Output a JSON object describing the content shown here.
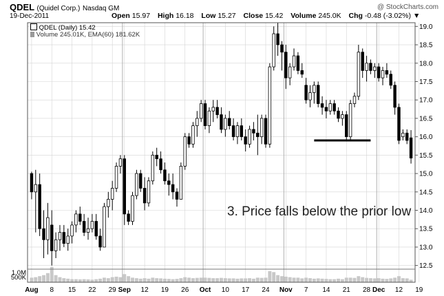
{
  "header": {
    "symbol": "QDEL",
    "company": "(Quidel Corp.)",
    "exchange": "Nasdaq GM",
    "date": "19-Dec-2011",
    "open_label": "Open",
    "open": "15.97",
    "high_label": "High",
    "high": "16.18",
    "low_label": "Low",
    "low": "15.27",
    "close_label": "Close",
    "close": "15.42",
    "volume_label": "Volume",
    "volume": "245.0K",
    "chg_label": "Chg",
    "chg": "-0.48 (-3.02%)",
    "chg_arrow": "▼",
    "watermark": "@ StockCharts.com"
  },
  "legend": {
    "price": "QDEL (Daily) 15.42",
    "volume": "Volume 245.01K, EMA(60) 181.62K"
  },
  "annotation": "3. Price falls below the prior low",
  "chart_data": {
    "type": "candlestick",
    "y_range": [
      12.4,
      19.1
    ],
    "y_ticks": [
      12.5,
      13.0,
      13.5,
      14.0,
      14.5,
      15.0,
      15.5,
      16.0,
      16.5,
      17.0,
      17.5,
      18.0,
      18.5,
      19.0
    ],
    "x_ticks": [
      "Aug",
      "8",
      "15",
      "22",
      "29",
      "Sep",
      "12",
      "19",
      "26",
      "Oct",
      "10",
      "17",
      "24",
      "Nov",
      "7",
      "14",
      "21",
      "28",
      "Dec",
      "12",
      "19"
    ],
    "x_tick_index": [
      0,
      5,
      10,
      15,
      20,
      23,
      28,
      33,
      38,
      43,
      48,
      53,
      58,
      63,
      68,
      73,
      78,
      83,
      86,
      91,
      96
    ],
    "month_start_index": [
      0,
      23,
      43,
      63,
      86
    ],
    "volume_ticks": [
      {
        "label": "1.0M",
        "value": 1000
      },
      {
        "label": "500K",
        "value": 500
      }
    ],
    "volume_range_k": [
      0,
      1700
    ],
    "colors": {
      "up": "#ffffff",
      "down": "#000000",
      "volume": "#c8c8c8",
      "grid": "#d4d4d4",
      "month_line": "#b0b0b0"
    },
    "prior_low_line": {
      "value": 15.9,
      "from_index": 70,
      "to_index": 84
    },
    "candles": [
      {
        "o": 15.0,
        "h": 15.05,
        "l": 14.3,
        "c": 14.5,
        "v": 450
      },
      {
        "o": 14.5,
        "h": 15.1,
        "l": 13.4,
        "c": 14.7,
        "v": 500
      },
      {
        "o": 14.7,
        "h": 15.0,
        "l": 13.3,
        "c": 13.5,
        "v": 600
      },
      {
        "o": 13.5,
        "h": 14.0,
        "l": 12.7,
        "c": 13.2,
        "v": 700
      },
      {
        "o": 13.2,
        "h": 14.2,
        "l": 12.8,
        "c": 13.8,
        "v": 900
      },
      {
        "o": 13.6,
        "h": 14.0,
        "l": 12.5,
        "c": 12.9,
        "v": 1500
      },
      {
        "o": 12.9,
        "h": 13.4,
        "l": 12.7,
        "c": 13.2,
        "v": 700
      },
      {
        "o": 13.2,
        "h": 13.6,
        "l": 12.9,
        "c": 13.4,
        "v": 500
      },
      {
        "o": 13.4,
        "h": 13.6,
        "l": 13.0,
        "c": 13.1,
        "v": 400
      },
      {
        "o": 13.1,
        "h": 13.5,
        "l": 12.9,
        "c": 13.3,
        "v": 350
      },
      {
        "o": 13.3,
        "h": 13.7,
        "l": 13.1,
        "c": 13.6,
        "v": 300
      },
      {
        "o": 13.6,
        "h": 14.0,
        "l": 13.4,
        "c": 13.9,
        "v": 300
      },
      {
        "o": 13.9,
        "h": 14.1,
        "l": 13.6,
        "c": 13.7,
        "v": 280
      },
      {
        "o": 13.7,
        "h": 13.9,
        "l": 13.3,
        "c": 13.4,
        "v": 300
      },
      {
        "o": 13.4,
        "h": 13.8,
        "l": 13.2,
        "c": 13.5,
        "v": 280
      },
      {
        "o": 13.5,
        "h": 13.9,
        "l": 13.4,
        "c": 13.7,
        "v": 250
      },
      {
        "o": 13.7,
        "h": 13.9,
        "l": 13.2,
        "c": 13.3,
        "v": 300
      },
      {
        "o": 13.3,
        "h": 13.5,
        "l": 12.9,
        "c": 13.0,
        "v": 350
      },
      {
        "o": 13.0,
        "h": 14.2,
        "l": 13.0,
        "c": 14.1,
        "v": 450
      },
      {
        "o": 14.1,
        "h": 14.5,
        "l": 13.8,
        "c": 14.3,
        "v": 400
      },
      {
        "o": 14.3,
        "h": 14.8,
        "l": 14.0,
        "c": 14.6,
        "v": 500
      },
      {
        "o": 14.6,
        "h": 15.3,
        "l": 14.5,
        "c": 15.2,
        "v": 550
      },
      {
        "o": 15.2,
        "h": 15.5,
        "l": 15.0,
        "c": 15.4,
        "v": 500
      },
      {
        "o": 15.4,
        "h": 15.5,
        "l": 13.6,
        "c": 13.9,
        "v": 800
      },
      {
        "o": 13.9,
        "h": 14.0,
        "l": 13.6,
        "c": 13.7,
        "v": 600
      },
      {
        "o": 13.7,
        "h": 14.5,
        "l": 13.6,
        "c": 14.4,
        "v": 450
      },
      {
        "o": 14.4,
        "h": 15.1,
        "l": 14.3,
        "c": 15.0,
        "v": 400
      },
      {
        "o": 15.0,
        "h": 15.1,
        "l": 14.5,
        "c": 14.6,
        "v": 350
      },
      {
        "o": 14.6,
        "h": 14.9,
        "l": 14.0,
        "c": 14.2,
        "v": 400
      },
      {
        "o": 14.2,
        "h": 14.9,
        "l": 14.1,
        "c": 14.8,
        "v": 350
      },
      {
        "o": 14.8,
        "h": 15.6,
        "l": 14.7,
        "c": 15.5,
        "v": 450
      },
      {
        "o": 15.5,
        "h": 15.7,
        "l": 15.2,
        "c": 15.4,
        "v": 400
      },
      {
        "o": 15.4,
        "h": 15.6,
        "l": 15.0,
        "c": 15.1,
        "v": 380
      },
      {
        "o": 15.1,
        "h": 15.3,
        "l": 14.7,
        "c": 14.8,
        "v": 350
      },
      {
        "o": 14.8,
        "h": 15.0,
        "l": 14.4,
        "c": 14.7,
        "v": 330
      },
      {
        "o": 14.7,
        "h": 15.0,
        "l": 14.3,
        "c": 14.5,
        "v": 300
      },
      {
        "o": 14.5,
        "h": 14.6,
        "l": 14.1,
        "c": 14.3,
        "v": 330
      },
      {
        "o": 14.3,
        "h": 15.3,
        "l": 14.3,
        "c": 15.2,
        "v": 400
      },
      {
        "o": 15.2,
        "h": 16.1,
        "l": 15.1,
        "c": 16.0,
        "v": 500
      },
      {
        "o": 16.0,
        "h": 16.1,
        "l": 15.7,
        "c": 15.8,
        "v": 450
      },
      {
        "o": 15.8,
        "h": 16.4,
        "l": 15.7,
        "c": 16.3,
        "v": 400
      },
      {
        "o": 16.3,
        "h": 16.7,
        "l": 16.0,
        "c": 16.5,
        "v": 430
      },
      {
        "o": 16.5,
        "h": 17.0,
        "l": 16.4,
        "c": 16.9,
        "v": 450
      },
      {
        "o": 16.9,
        "h": 17.0,
        "l": 16.2,
        "c": 16.3,
        "v": 450
      },
      {
        "o": 16.3,
        "h": 16.8,
        "l": 16.1,
        "c": 16.7,
        "v": 430
      },
      {
        "o": 16.7,
        "h": 17.0,
        "l": 16.4,
        "c": 16.8,
        "v": 400
      },
      {
        "o": 16.8,
        "h": 17.0,
        "l": 16.5,
        "c": 16.6,
        "v": 400
      },
      {
        "o": 16.6,
        "h": 16.8,
        "l": 16.1,
        "c": 16.2,
        "v": 430
      },
      {
        "o": 16.2,
        "h": 16.6,
        "l": 16.0,
        "c": 16.5,
        "v": 400
      },
      {
        "o": 16.5,
        "h": 16.7,
        "l": 16.2,
        "c": 16.3,
        "v": 380
      },
      {
        "o": 16.3,
        "h": 16.5,
        "l": 15.9,
        "c": 16.0,
        "v": 380
      },
      {
        "o": 16.0,
        "h": 16.4,
        "l": 15.8,
        "c": 16.3,
        "v": 350
      },
      {
        "o": 16.3,
        "h": 16.5,
        "l": 15.9,
        "c": 16.0,
        "v": 380
      },
      {
        "o": 16.0,
        "h": 16.2,
        "l": 15.6,
        "c": 15.8,
        "v": 380
      },
      {
        "o": 15.8,
        "h": 16.3,
        "l": 15.7,
        "c": 16.2,
        "v": 400
      },
      {
        "o": 16.2,
        "h": 16.4,
        "l": 15.9,
        "c": 16.1,
        "v": 350
      },
      {
        "o": 16.1,
        "h": 16.6,
        "l": 15.5,
        "c": 16.0,
        "v": 450
      },
      {
        "o": 16.0,
        "h": 16.6,
        "l": 15.8,
        "c": 16.5,
        "v": 430
      },
      {
        "o": 16.5,
        "h": 16.6,
        "l": 15.7,
        "c": 15.8,
        "v": 450
      },
      {
        "o": 15.8,
        "h": 18.0,
        "l": 15.7,
        "c": 17.9,
        "v": 1100
      },
      {
        "o": 17.9,
        "h": 19.0,
        "l": 17.8,
        "c": 18.8,
        "v": 1000
      },
      {
        "o": 18.8,
        "h": 19.1,
        "l": 18.2,
        "c": 18.5,
        "v": 700
      },
      {
        "o": 18.5,
        "h": 18.6,
        "l": 17.8,
        "c": 18.3,
        "v": 600
      },
      {
        "o": 18.3,
        "h": 18.5,
        "l": 17.3,
        "c": 17.6,
        "v": 550
      },
      {
        "o": 17.6,
        "h": 18.0,
        "l": 17.4,
        "c": 17.9,
        "v": 500
      },
      {
        "o": 17.9,
        "h": 18.4,
        "l": 17.8,
        "c": 18.2,
        "v": 450
      },
      {
        "o": 18.2,
        "h": 18.3,
        "l": 17.7,
        "c": 17.8,
        "v": 450
      },
      {
        "o": 17.8,
        "h": 18.0,
        "l": 17.6,
        "c": 17.7,
        "v": 380
      },
      {
        "o": 17.4,
        "h": 17.6,
        "l": 16.9,
        "c": 17.0,
        "v": 450
      },
      {
        "o": 17.0,
        "h": 17.4,
        "l": 16.8,
        "c": 17.2,
        "v": 400
      },
      {
        "o": 17.2,
        "h": 17.5,
        "l": 16.9,
        "c": 17.4,
        "v": 350
      },
      {
        "o": 17.4,
        "h": 17.5,
        "l": 16.8,
        "c": 16.9,
        "v": 380
      },
      {
        "o": 16.9,
        "h": 17.1,
        "l": 16.6,
        "c": 16.8,
        "v": 350
      },
      {
        "o": 16.8,
        "h": 17.0,
        "l": 16.5,
        "c": 16.7,
        "v": 330
      },
      {
        "o": 16.7,
        "h": 17.0,
        "l": 16.6,
        "c": 16.9,
        "v": 300
      },
      {
        "o": 16.9,
        "h": 17.0,
        "l": 16.6,
        "c": 16.7,
        "v": 300
      },
      {
        "o": 16.7,
        "h": 16.8,
        "l": 16.4,
        "c": 16.5,
        "v": 350
      },
      {
        "o": 16.5,
        "h": 16.7,
        "l": 16.3,
        "c": 16.6,
        "v": 300
      },
      {
        "o": 16.6,
        "h": 16.7,
        "l": 15.9,
        "c": 16.0,
        "v": 450
      },
      {
        "o": 16.0,
        "h": 17.0,
        "l": 15.9,
        "c": 16.9,
        "v": 450
      },
      {
        "o": 16.9,
        "h": 17.2,
        "l": 16.8,
        "c": 17.1,
        "v": 430
      },
      {
        "o": 17.1,
        "h": 18.5,
        "l": 17.0,
        "c": 18.3,
        "v": 600
      },
      {
        "o": 18.3,
        "h": 18.4,
        "l": 17.6,
        "c": 17.8,
        "v": 500
      },
      {
        "o": 17.8,
        "h": 18.2,
        "l": 17.5,
        "c": 18.0,
        "v": 430
      },
      {
        "o": 18.0,
        "h": 18.1,
        "l": 17.7,
        "c": 17.8,
        "v": 400
      },
      {
        "o": 17.8,
        "h": 18.0,
        "l": 17.6,
        "c": 17.9,
        "v": 380
      },
      {
        "o": 17.9,
        "h": 18.0,
        "l": 17.5,
        "c": 17.6,
        "v": 400
      },
      {
        "o": 17.6,
        "h": 17.9,
        "l": 17.4,
        "c": 17.8,
        "v": 350
      },
      {
        "o": 17.8,
        "h": 18.0,
        "l": 17.6,
        "c": 17.7,
        "v": 330
      },
      {
        "o": 17.7,
        "h": 17.8,
        "l": 17.3,
        "c": 17.4,
        "v": 380
      },
      {
        "o": 17.4,
        "h": 17.5,
        "l": 16.6,
        "c": 16.8,
        "v": 450
      },
      {
        "o": 16.8,
        "h": 16.9,
        "l": 15.8,
        "c": 15.9,
        "v": 600
      },
      {
        "o": 16.0,
        "h": 16.2,
        "l": 15.9,
        "c": 16.1,
        "v": 400
      },
      {
        "o": 16.1,
        "h": 16.2,
        "l": 15.8,
        "c": 15.9,
        "v": 380
      },
      {
        "o": 15.97,
        "h": 16.18,
        "l": 15.27,
        "c": 15.42,
        "v": 245
      }
    ]
  }
}
